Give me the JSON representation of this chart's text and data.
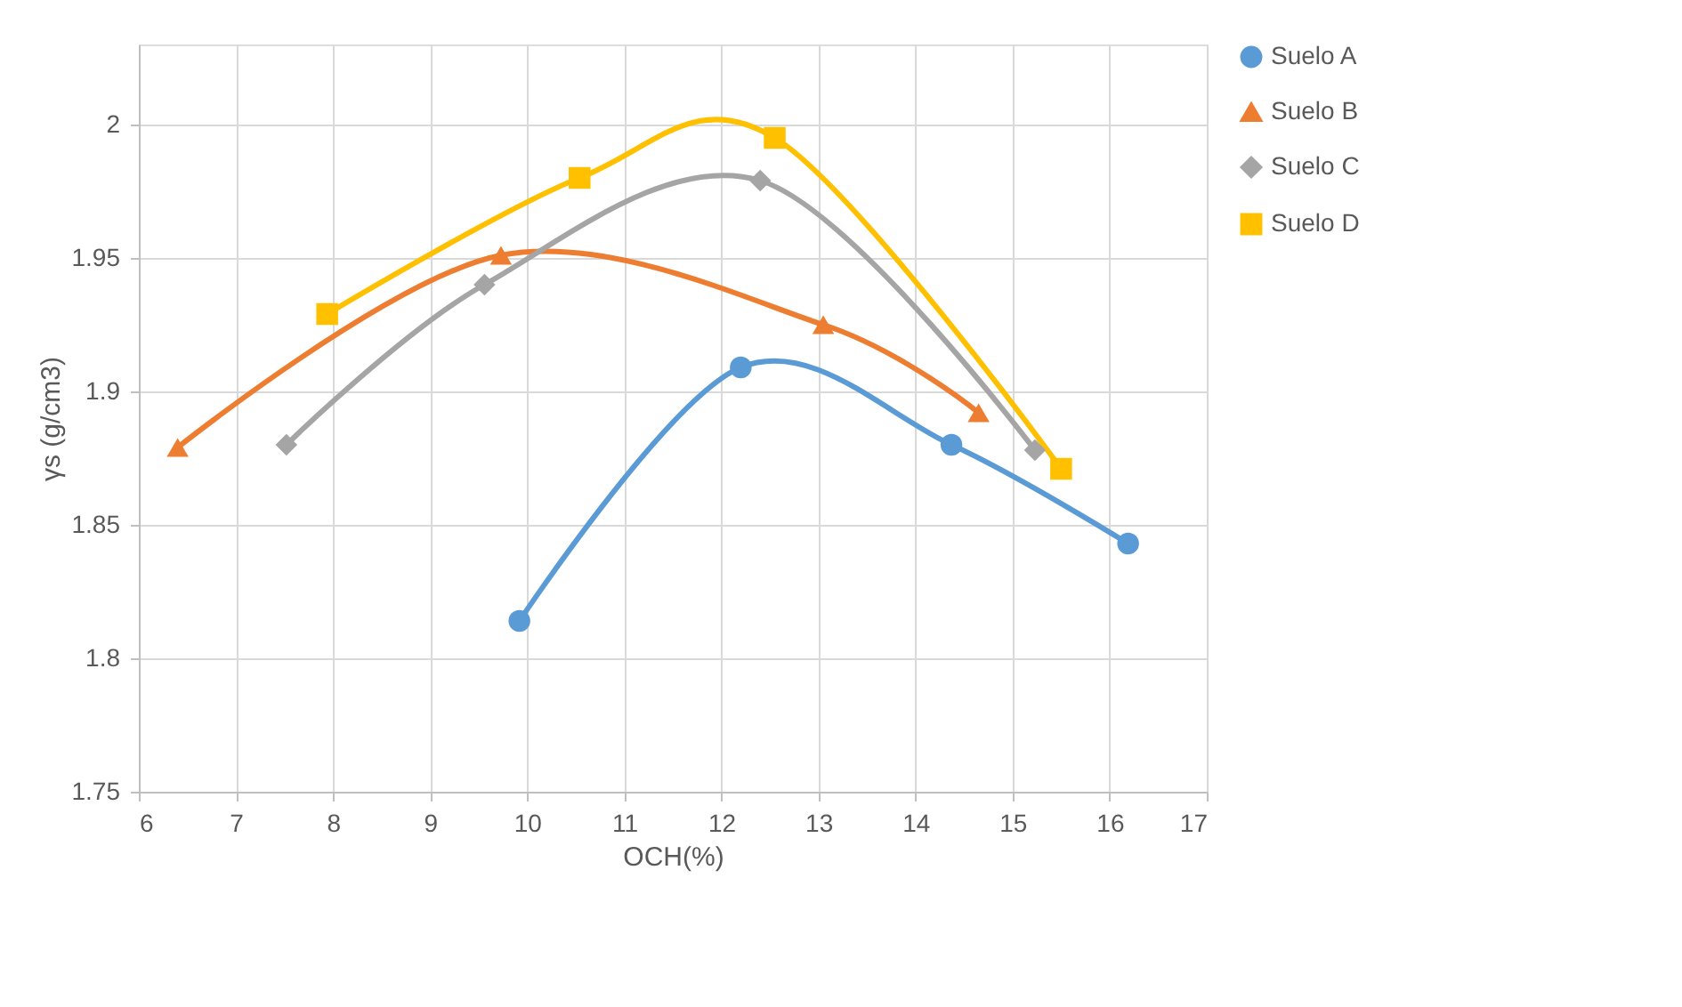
{
  "chart_data": {
    "type": "line",
    "xlabel": "OCH(%)",
    "ylabel": "γs (g/cm3)",
    "xlim": [
      6,
      17
    ],
    "xticks": [
      6,
      7,
      8,
      9,
      10,
      11,
      12,
      13,
      14,
      15,
      16,
      17
    ],
    "ylim": [
      1.75,
      2.03
    ],
    "yticks": [
      1.75,
      1.8,
      1.85,
      1.9,
      1.95,
      2
    ],
    "grid": true,
    "legend": "right",
    "line_style": "solid",
    "series": [
      {
        "name": "Suelo A",
        "color": "#5b9bd5",
        "marker": "circle",
        "x": [
          9.92,
          12.2,
          14.37,
          16.19
        ],
        "values": [
          1.814,
          1.909,
          1.88,
          1.843
        ]
      },
      {
        "name": "Suelo B",
        "color": "#ed7d31",
        "marker": "triangle",
        "x": [
          6.4,
          9.73,
          13.05,
          14.65
        ],
        "values": [
          1.879,
          1.951,
          1.925,
          1.892
        ]
      },
      {
        "name": "Suelo C",
        "color": "#a5a5a5",
        "marker": "diamond",
        "x": [
          7.52,
          9.56,
          12.4,
          15.23
        ],
        "values": [
          1.88,
          1.94,
          1.979,
          1.878
        ]
      },
      {
        "name": "Suelo D",
        "color": "#ffc000",
        "marker": "square",
        "x": [
          7.94,
          10.54,
          12.55,
          15.5
        ],
        "values": [
          1.929,
          1.98,
          1.995,
          1.871
        ]
      }
    ]
  }
}
